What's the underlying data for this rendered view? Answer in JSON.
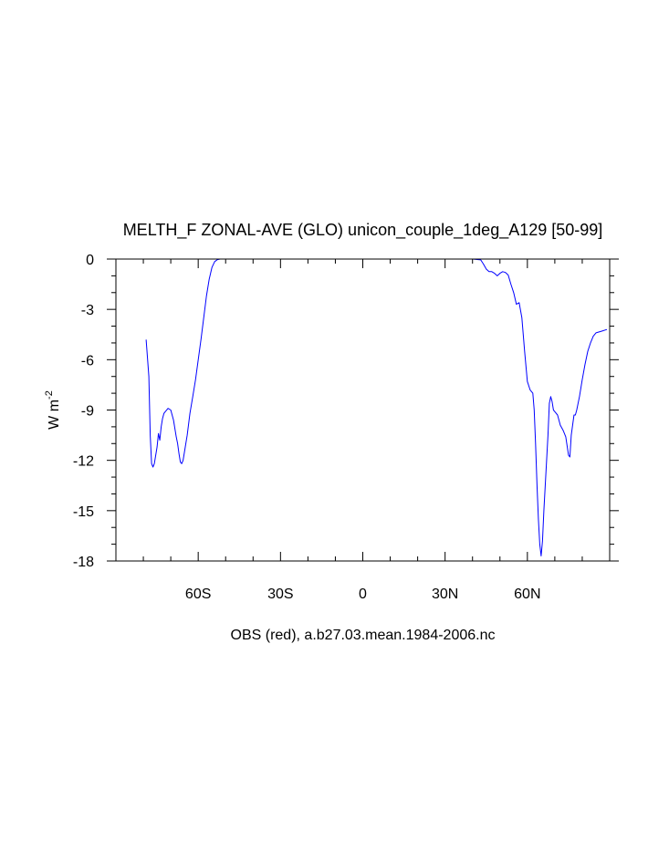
{
  "chart_data": {
    "type": "line",
    "title": "MELTH_F ZONAL-AVE (GLO) unicon_couple_1deg_A129 [50-99]",
    "xlabel": "OBS (red), a.b27.03.mean.1984-2006.nc",
    "ylabel": "W m",
    "ylabel_superscript": "-2",
    "xlim": [
      -90,
      90
    ],
    "ylim": [
      -18,
      0
    ],
    "xticks": [
      {
        "value": -60,
        "label": "60S"
      },
      {
        "value": -30,
        "label": "30S"
      },
      {
        "value": 0,
        "label": "0"
      },
      {
        "value": 30,
        "label": "30N"
      },
      {
        "value": 60,
        "label": "60N"
      }
    ],
    "yticks": [
      {
        "value": 0,
        "label": "0"
      },
      {
        "value": -3,
        "label": "-3"
      },
      {
        "value": -6,
        "label": "-6"
      },
      {
        "value": -9,
        "label": "-9"
      },
      {
        "value": -12,
        "label": "-12"
      },
      {
        "value": -15,
        "label": "-15"
      },
      {
        "value": -18,
        "label": "-18"
      }
    ],
    "series": [
      {
        "color": "#0000ff",
        "points": [
          [
            -79,
            -4.8
          ],
          [
            -78,
            -7.0
          ],
          [
            -77.5,
            -10.5
          ],
          [
            -77,
            -12.2
          ],
          [
            -76.5,
            -12.4
          ],
          [
            -76,
            -12.2
          ],
          [
            -75,
            -11.2
          ],
          [
            -74.5,
            -10.4
          ],
          [
            -74,
            -10.8
          ],
          [
            -73.5,
            -10.0
          ],
          [
            -73,
            -9.5
          ],
          [
            -72.5,
            -9.2
          ],
          [
            -72,
            -9.1
          ],
          [
            -71,
            -8.9
          ],
          [
            -70,
            -9.0
          ],
          [
            -69,
            -9.6
          ],
          [
            -68,
            -10.6
          ],
          [
            -67.5,
            -11.0
          ],
          [
            -67,
            -11.6
          ],
          [
            -66.5,
            -12.1
          ],
          [
            -66,
            -12.2
          ],
          [
            -65.5,
            -12.0
          ],
          [
            -65,
            -11.5
          ],
          [
            -64,
            -10.5
          ],
          [
            -63,
            -9.2
          ],
          [
            -62,
            -8.2
          ],
          [
            -61,
            -7.2
          ],
          [
            -60,
            -6.0
          ],
          [
            -59,
            -4.8
          ],
          [
            -58,
            -3.5
          ],
          [
            -57,
            -2.2
          ],
          [
            -56,
            -1.2
          ],
          [
            -55,
            -0.5
          ],
          [
            -54,
            -0.15
          ],
          [
            -53,
            -0.03
          ],
          [
            -52,
            0
          ],
          [
            -30,
            0
          ],
          [
            0,
            0
          ],
          [
            30,
            0
          ],
          [
            40,
            0
          ],
          [
            43,
            -0.05
          ],
          [
            44,
            -0.3
          ],
          [
            45,
            -0.6
          ],
          [
            46,
            -0.75
          ],
          [
            47,
            -0.75
          ],
          [
            48,
            -0.85
          ],
          [
            49,
            -1.0
          ],
          [
            50,
            -0.85
          ],
          [
            51,
            -0.75
          ],
          [
            52,
            -0.8
          ],
          [
            53,
            -0.95
          ],
          [
            54,
            -1.5
          ],
          [
            55,
            -2.0
          ],
          [
            56,
            -2.7
          ],
          [
            57,
            -2.6
          ],
          [
            58,
            -3.5
          ],
          [
            59,
            -5.5
          ],
          [
            60,
            -7.3
          ],
          [
            61,
            -7.8
          ],
          [
            62,
            -8.0
          ],
          [
            62.5,
            -9.0
          ],
          [
            63,
            -11.0
          ],
          [
            63.5,
            -13.5
          ],
          [
            64,
            -15.5
          ],
          [
            64.5,
            -17.0
          ],
          [
            65,
            -17.7
          ],
          [
            65.5,
            -16.8
          ],
          [
            66,
            -15.0
          ],
          [
            66.5,
            -13.5
          ],
          [
            67,
            -12.0
          ],
          [
            67.5,
            -10.5
          ],
          [
            68,
            -8.6
          ],
          [
            68.5,
            -8.2
          ],
          [
            69,
            -8.5
          ],
          [
            69.5,
            -9.0
          ],
          [
            70,
            -9.1
          ],
          [
            71,
            -9.3
          ],
          [
            72,
            -9.9
          ],
          [
            73,
            -10.2
          ],
          [
            73.5,
            -10.4
          ],
          [
            74,
            -10.6
          ],
          [
            75,
            -11.7
          ],
          [
            75.5,
            -11.8
          ],
          [
            76,
            -10.5
          ],
          [
            77,
            -9.3
          ],
          [
            77.5,
            -9.3
          ],
          [
            78,
            -9.0
          ],
          [
            79,
            -8.2
          ],
          [
            80,
            -7.2
          ],
          [
            81,
            -6.3
          ],
          [
            82,
            -5.5
          ],
          [
            83,
            -5.0
          ],
          [
            84,
            -4.6
          ],
          [
            85,
            -4.4
          ],
          [
            87,
            -4.3
          ],
          [
            89,
            -4.2
          ]
        ]
      }
    ]
  }
}
